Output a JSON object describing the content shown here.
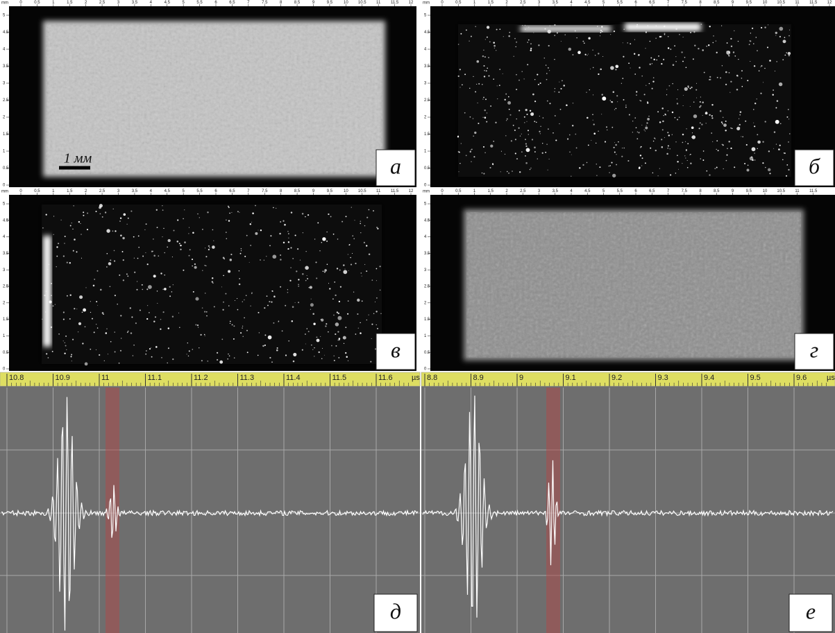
{
  "panels": [
    {
      "label": "а",
      "ruler_unit": "mm",
      "xticks": [
        "0",
        "0.5",
        "1",
        "1.5",
        "2",
        "2.5",
        "3",
        "3.5",
        "4",
        "4.5",
        "5",
        "5.5",
        "6",
        "6.5",
        "7",
        "7.5",
        "8",
        "8.5",
        "9",
        "9.5",
        "10",
        "10.5",
        "11",
        "11.5",
        "12"
      ],
      "yticks": [
        "5",
        "4.5",
        "4",
        "3.5",
        "3",
        "2.5",
        "2",
        "1.5",
        "1",
        "0.5",
        "0"
      ],
      "scale_bar": "1 мм"
    },
    {
      "label": "б",
      "ruler_unit": "mm",
      "xticks": [
        "0",
        "0.5",
        "1",
        "1.5",
        "2",
        "2.5",
        "3",
        "3.5",
        "4",
        "4.5",
        "5",
        "5.5",
        "6",
        "6.5",
        "7",
        "7.5",
        "8",
        "8.5",
        "9",
        "9.5",
        "10",
        "10.5",
        "11",
        "11.5",
        "12"
      ],
      "yticks": [
        "5",
        "4.5",
        "4",
        "3.5",
        "3",
        "2.5",
        "2",
        "1.5",
        "1",
        "0.5",
        "0"
      ]
    },
    {
      "label": "в",
      "ruler_unit": "mm",
      "xticks": [
        "0",
        "0.5",
        "1",
        "1.5",
        "2",
        "2.5",
        "3",
        "3.5",
        "4",
        "4.5",
        "5",
        "5.5",
        "6",
        "6.5",
        "7",
        "7.5",
        "8",
        "8.5",
        "9",
        "9.5",
        "10",
        "10.5",
        "11",
        "11.5",
        "12"
      ],
      "yticks": [
        "5",
        "4.5",
        "4",
        "3.5",
        "3",
        "2.5",
        "2",
        "1.5",
        "1",
        "0.5",
        "0"
      ]
    },
    {
      "label": "г",
      "ruler_unit": "mm",
      "xticks": [
        "0",
        "0.5",
        "1",
        "1.5",
        "2",
        "2.5",
        "3",
        "3.5",
        "4",
        "4.5",
        "5",
        "5.5",
        "6",
        "6.5",
        "7",
        "7.5",
        "8",
        "8.5",
        "9",
        "9.5",
        "10",
        "10.5",
        "11",
        "11.5"
      ],
      "yticks": [
        "5",
        "4.5",
        "4",
        "3.5",
        "3",
        "2.5",
        "2",
        "1.5",
        "1",
        "0.5",
        "0"
      ]
    }
  ],
  "waveforms": [
    {
      "label": "д",
      "xticks": [
        "10.8",
        "10.9",
        "11",
        "11.1",
        "11.2",
        "11.3",
        "11.4",
        "11.5",
        "11.6"
      ],
      "unit": "µs"
    },
    {
      "label": "е",
      "xticks": [
        "8.8",
        "8.9",
        "9",
        "9.1",
        "9.2",
        "9.3",
        "9.4",
        "9.5",
        "9.6"
      ],
      "unit": "µs"
    }
  ]
}
